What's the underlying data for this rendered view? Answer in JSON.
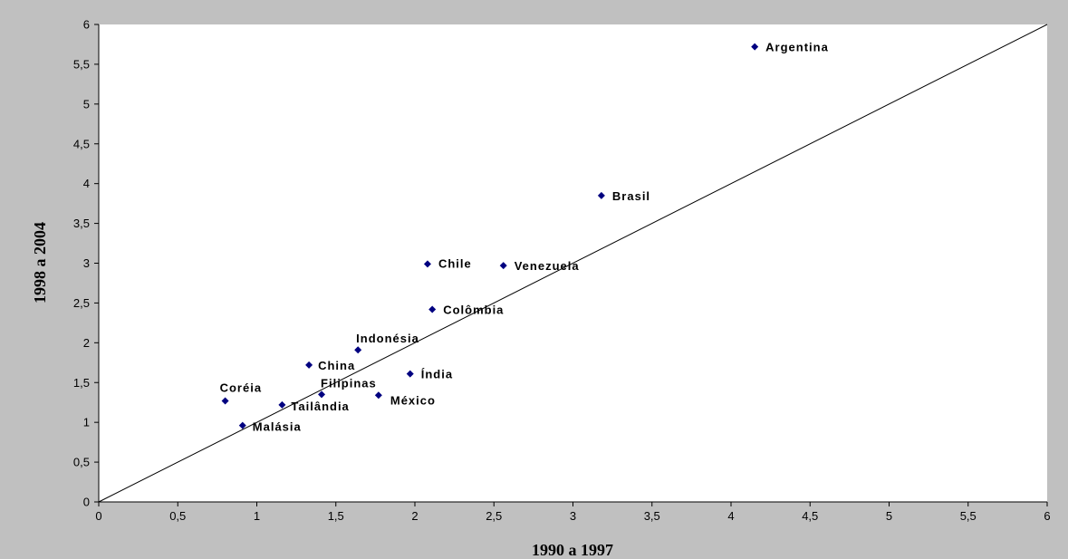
{
  "chart_data": {
    "type": "scatter",
    "xlabel": "1990 a 1997",
    "ylabel": "1998 a 2004",
    "xlim": [
      0,
      6
    ],
    "ylim": [
      0,
      6
    ],
    "x_ticks": [
      "0",
      "0,5",
      "1",
      "1,5",
      "2",
      "2,5",
      "3",
      "3,5",
      "4",
      "4,5",
      "5",
      "5,5",
      "6"
    ],
    "y_ticks": [
      "0",
      "0,5",
      "1",
      "1,5",
      "2",
      "2,5",
      "3",
      "3,5",
      "4",
      "4,5",
      "5",
      "5,5",
      "6"
    ],
    "grid": false,
    "reference_line": {
      "from": [
        0,
        0
      ],
      "to": [
        6,
        6
      ]
    },
    "marker_color": "#000080",
    "points": [
      {
        "label": "Argentina",
        "x": 4.15,
        "y": 5.72
      },
      {
        "label": "Brasil",
        "x": 3.18,
        "y": 3.85
      },
      {
        "label": "Chile",
        "x": 2.08,
        "y": 2.99
      },
      {
        "label": "Venezuela",
        "x": 2.56,
        "y": 2.97
      },
      {
        "label": "Colômbia",
        "x": 2.11,
        "y": 2.42
      },
      {
        "label": "Indonésia",
        "x": 1.64,
        "y": 1.91
      },
      {
        "label": "China",
        "x": 1.33,
        "y": 1.72
      },
      {
        "label": "Índia",
        "x": 1.97,
        "y": 1.61
      },
      {
        "label": "Coréia",
        "x": 0.8,
        "y": 1.27
      },
      {
        "label": "Filipinas",
        "x": 1.41,
        "y": 1.35
      },
      {
        "label": "México",
        "x": 1.77,
        "y": 1.34
      },
      {
        "label": "Tailândia",
        "x": 1.16,
        "y": 1.22
      },
      {
        "label": "Malásia",
        "x": 0.91,
        "y": 0.96
      }
    ]
  }
}
